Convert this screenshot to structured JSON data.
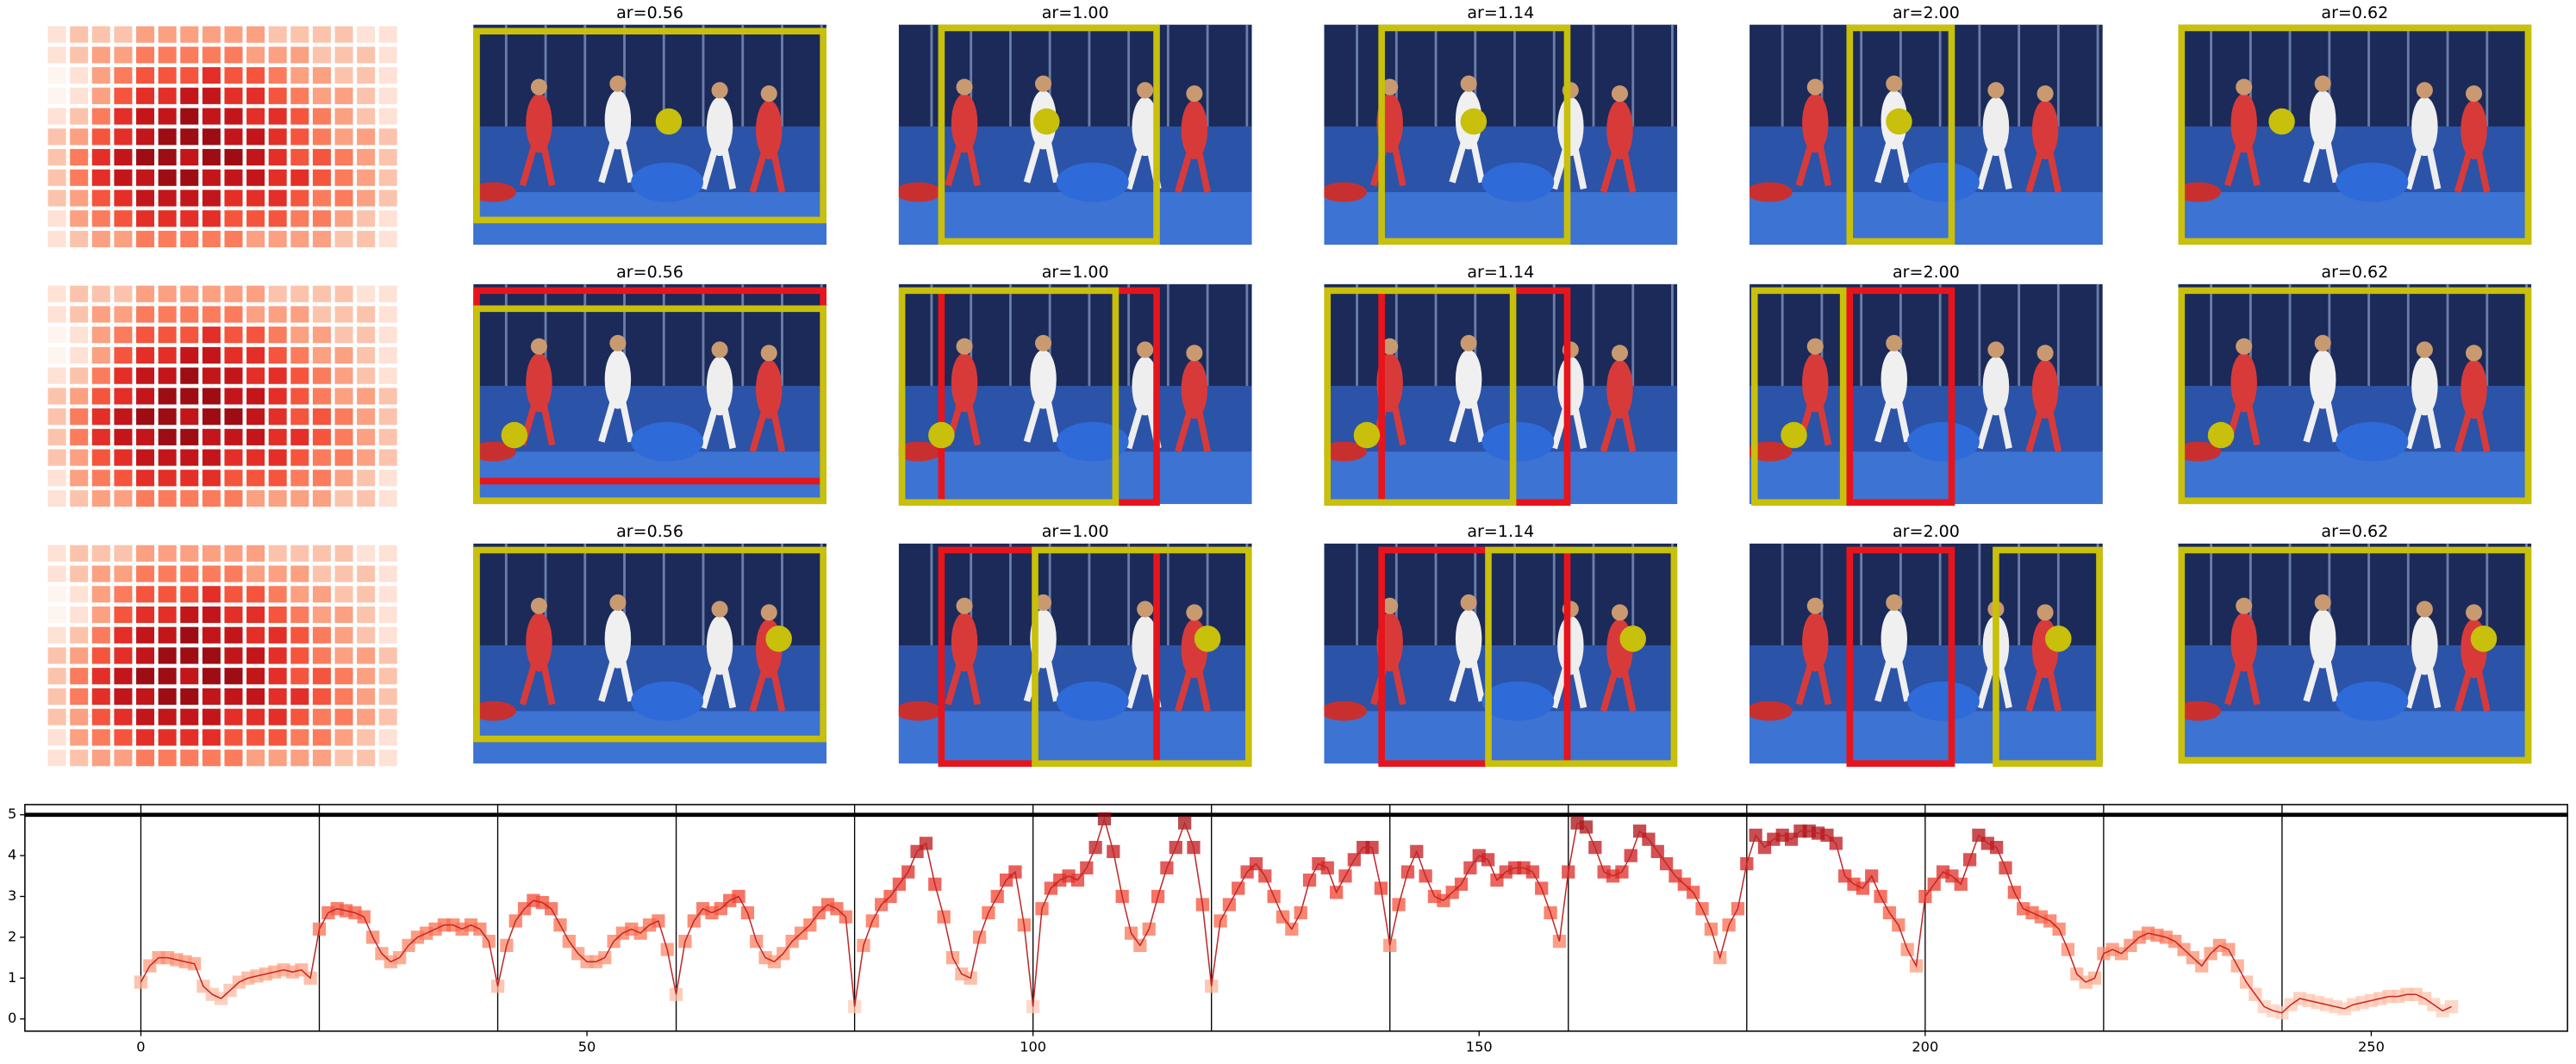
{
  "panels": [
    {
      "titles": [
        "ar=0.56",
        "ar=1.00",
        "ar=1.14",
        "ar=2.00",
        "ar=0.62"
      ]
    },
    {
      "titles": [
        "ar=0.56",
        "ar=1.00",
        "ar=1.14",
        "ar=2.00",
        "ar=0.62"
      ]
    },
    {
      "titles": [
        "ar=0.56",
        "ar=1.00",
        "ar=1.14",
        "ar=2.00",
        "ar=0.62"
      ]
    }
  ],
  "heatmap": [
    [
      1,
      2,
      2,
      2,
      3,
      3,
      3,
      3,
      3,
      3,
      2,
      2,
      2,
      2,
      1,
      1
    ],
    [
      1,
      2,
      3,
      3,
      4,
      4,
      4,
      4,
      4,
      3,
      3,
      3,
      2,
      2,
      2,
      1
    ],
    [
      0,
      1,
      3,
      4,
      5,
      5,
      5,
      6,
      5,
      5,
      4,
      3,
      3,
      2,
      2,
      1
    ],
    [
      0,
      1,
      3,
      5,
      6,
      6,
      7,
      7,
      6,
      6,
      5,
      4,
      3,
      3,
      2,
      1
    ],
    [
      1,
      2,
      4,
      6,
      7,
      7,
      8,
      7,
      7,
      6,
      6,
      5,
      4,
      3,
      2,
      1
    ],
    [
      2,
      3,
      5,
      6,
      7,
      8,
      8,
      8,
      7,
      7,
      6,
      5,
      4,
      3,
      3,
      2
    ],
    [
      2,
      4,
      6,
      7,
      8,
      8,
      7,
      8,
      8,
      7,
      6,
      5,
      5,
      4,
      3,
      2
    ],
    [
      2,
      4,
      6,
      7,
      7,
      8,
      8,
      7,
      7,
      7,
      6,
      6,
      5,
      4,
      3,
      2
    ],
    [
      2,
      3,
      5,
      6,
      7,
      7,
      7,
      7,
      6,
      6,
      6,
      5,
      4,
      4,
      3,
      2
    ],
    [
      1,
      3,
      4,
      5,
      6,
      6,
      6,
      6,
      5,
      5,
      5,
      4,
      4,
      3,
      2,
      1
    ],
    [
      1,
      2,
      3,
      3,
      4,
      4,
      4,
      4,
      4,
      3,
      3,
      3,
      3,
      2,
      2,
      1
    ]
  ],
  "chart_data": {
    "type": "line",
    "x": [
      0,
      1,
      2,
      3,
      4,
      5,
      6,
      7,
      8,
      9,
      10,
      11,
      12,
      13,
      14,
      15,
      16,
      17,
      18,
      19,
      20,
      21,
      22,
      23,
      24,
      25,
      26,
      27,
      28,
      29,
      30,
      31,
      32,
      33,
      34,
      35,
      36,
      37,
      38,
      39,
      40,
      41,
      42,
      43,
      44,
      45,
      46,
      47,
      48,
      49,
      50,
      51,
      52,
      53,
      54,
      55,
      56,
      57,
      58,
      59,
      60,
      61,
      62,
      63,
      64,
      65,
      66,
      67,
      68,
      69,
      70,
      71,
      72,
      73,
      74,
      75,
      76,
      77,
      78,
      79,
      80,
      81,
      82,
      83,
      84,
      85,
      86,
      87,
      88,
      89,
      90,
      91,
      92,
      93,
      94,
      95,
      96,
      97,
      98,
      99,
      100,
      101,
      102,
      103,
      104,
      105,
      106,
      107,
      108,
      109,
      110,
      111,
      112,
      113,
      114,
      115,
      116,
      117,
      118,
      119,
      120,
      121,
      122,
      123,
      124,
      125,
      126,
      127,
      128,
      129,
      130,
      131,
      132,
      133,
      134,
      135,
      136,
      137,
      138,
      139,
      140,
      141,
      142,
      143,
      144,
      145,
      146,
      147,
      148,
      149,
      150,
      151,
      152,
      153,
      154,
      155,
      156,
      157,
      158,
      159,
      160,
      161,
      162,
      163,
      164,
      165,
      166,
      167,
      168,
      169,
      170,
      171,
      172,
      173,
      174,
      175,
      176,
      177,
      178,
      179,
      180,
      181,
      182,
      183,
      184,
      185,
      186,
      187,
      188,
      189,
      190,
      191,
      192,
      193,
      194,
      195,
      196,
      197,
      198,
      199,
      200,
      201,
      202,
      203,
      204,
      205,
      206,
      207,
      208,
      209,
      210,
      211,
      212,
      213,
      214,
      215,
      216,
      217,
      218,
      219,
      220,
      221,
      222,
      223,
      224,
      225,
      226,
      227,
      228,
      229,
      230,
      231,
      232,
      233,
      234,
      235,
      236,
      237,
      238,
      239,
      240,
      241,
      242,
      243,
      244,
      245,
      246,
      247,
      248,
      249,
      250,
      251,
      252,
      253,
      254,
      255,
      256,
      257,
      258,
      259
    ],
    "values": [
      0.9,
      1.3,
      1.5,
      1.5,
      1.45,
      1.4,
      1.35,
      0.8,
      0.6,
      0.5,
      0.7,
      0.9,
      1.0,
      1.05,
      1.1,
      1.15,
      1.2,
      1.15,
      1.2,
      1.0,
      2.2,
      2.6,
      2.7,
      2.65,
      2.6,
      2.5,
      2.0,
      1.6,
      1.4,
      1.5,
      1.8,
      2.0,
      2.1,
      2.2,
      2.3,
      2.3,
      2.2,
      2.3,
      2.2,
      1.9,
      0.8,
      1.8,
      2.4,
      2.7,
      2.9,
      2.85,
      2.7,
      2.3,
      1.9,
      1.6,
      1.4,
      1.4,
      1.5,
      1.9,
      2.1,
      2.2,
      2.1,
      2.3,
      2.4,
      1.7,
      0.6,
      1.9,
      2.4,
      2.7,
      2.6,
      2.7,
      2.9,
      3.0,
      2.6,
      1.9,
      1.5,
      1.4,
      1.6,
      1.9,
      2.1,
      2.3,
      2.6,
      2.8,
      2.7,
      2.5,
      0.3,
      1.8,
      2.4,
      2.8,
      3.0,
      3.3,
      3.6,
      4.1,
      4.3,
      3.3,
      2.5,
      1.5,
      1.1,
      1.0,
      2.0,
      2.6,
      3.0,
      3.4,
      3.6,
      2.3,
      0.3,
      2.7,
      3.2,
      3.4,
      3.5,
      3.4,
      3.7,
      4.2,
      4.9,
      4.1,
      3.0,
      2.1,
      1.8,
      2.2,
      3.0,
      3.7,
      4.2,
      4.8,
      4.2,
      2.8,
      0.8,
      2.4,
      2.8,
      3.2,
      3.6,
      3.8,
      3.5,
      3.0,
      2.5,
      2.2,
      2.6,
      3.4,
      3.8,
      3.7,
      3.1,
      3.5,
      3.9,
      4.2,
      4.2,
      3.2,
      1.8,
      2.8,
      3.6,
      4.1,
      3.5,
      3.0,
      2.9,
      3.1,
      3.3,
      3.7,
      4.0,
      3.9,
      3.4,
      3.6,
      3.7,
      3.7,
      3.6,
      3.2,
      2.6,
      1.9,
      3.6,
      4.8,
      4.7,
      4.2,
      3.6,
      3.5,
      3.6,
      4.0,
      4.6,
      4.4,
      4.1,
      3.8,
      3.5,
      3.3,
      3.1,
      2.7,
      2.2,
      1.5,
      2.3,
      2.7,
      3.8,
      4.5,
      4.2,
      4.4,
      4.5,
      4.4,
      4.6,
      4.6,
      4.55,
      4.5,
      4.3,
      3.5,
      3.3,
      3.2,
      3.5,
      3.0,
      2.6,
      2.3,
      1.7,
      1.3,
      3.0,
      3.3,
      3.6,
      3.5,
      3.3,
      3.9,
      4.5,
      4.3,
      4.2,
      3.7,
      3.1,
      2.7,
      2.6,
      2.5,
      2.4,
      2.2,
      1.7,
      1.1,
      0.9,
      1.0,
      1.6,
      1.7,
      1.6,
      1.8,
      2.0,
      2.1,
      2.05,
      2.0,
      1.9,
      1.7,
      1.5,
      1.3,
      1.6,
      1.8,
      1.7,
      1.3,
      0.9,
      0.6,
      0.3,
      0.2,
      0.15,
      0.35,
      0.5,
      0.45,
      0.4,
      0.35,
      0.3,
      0.25,
      0.35,
      0.4,
      0.45,
      0.5,
      0.55,
      0.55,
      0.6,
      0.6,
      0.5,
      0.35,
      0.2,
      0.3
    ],
    "xlim": [
      -13,
      272
    ],
    "ylim": [
      -0.3,
      5.25
    ],
    "xticks": [
      0,
      50,
      100,
      150,
      200,
      250
    ],
    "yticks": [
      0,
      1,
      2,
      3,
      4,
      5
    ],
    "vlines": [
      0,
      20,
      40,
      60,
      80,
      100,
      120,
      140,
      160,
      180,
      200,
      220,
      240
    ],
    "hline": 5,
    "colormap": "Reds",
    "color": "#c0282a"
  }
}
